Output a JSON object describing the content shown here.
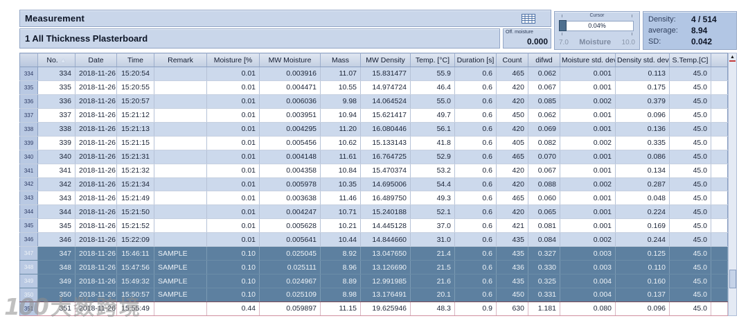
{
  "window": {
    "title": "Measurement",
    "subtitle": "1 All Thickness Plasterboard"
  },
  "header": {
    "off_moisture": {
      "label": "Off. moisture",
      "value": "0.000"
    },
    "cursor": {
      "label": "Cursor",
      "value": "0.04%",
      "scale_min": "7.0",
      "scale_name": "Moisture",
      "scale_max": "10.0"
    },
    "stats": {
      "density_label": "Density:",
      "density_value": "4 / 514",
      "average_label": "average:",
      "average_value": "8.94",
      "sd_label": "SD:",
      "sd_value": "0.042"
    }
  },
  "table": {
    "columns": [
      "No.",
      "Date",
      "Time",
      "Remark",
      "Moisture [%",
      "MW Moisture",
      "Mass",
      "MW Density",
      "Temp. [°C]",
      "Duration [s]",
      "Count",
      "difwd",
      "Moisture std. dev",
      "Density std. dev",
      "S.Temp.[C]"
    ],
    "rows": [
      {
        "cells": [
          "334",
          "334",
          "2018-11-26",
          "15:20:54",
          "",
          "0.01",
          "0.003916",
          "11.07",
          "15.831477",
          "55.9",
          "0.6",
          "465",
          "0.062",
          "0.001",
          "0.113",
          "45.0"
        ],
        "selected": false
      },
      {
        "cells": [
          "335",
          "335",
          "2018-11-26",
          "15:20:55",
          "",
          "0.01",
          "0.004471",
          "10.55",
          "14.974724",
          "46.4",
          "0.6",
          "420",
          "0.067",
          "0.001",
          "0.175",
          "45.0"
        ],
        "selected": false
      },
      {
        "cells": [
          "336",
          "336",
          "2018-11-26",
          "15:20:57",
          "",
          "0.01",
          "0.006036",
          "9.98",
          "14.064524",
          "55.0",
          "0.6",
          "420",
          "0.085",
          "0.002",
          "0.379",
          "45.0"
        ],
        "selected": false
      },
      {
        "cells": [
          "337",
          "337",
          "2018-11-26",
          "15:21:12",
          "",
          "0.01",
          "0.003951",
          "10.94",
          "15.621417",
          "49.7",
          "0.6",
          "450",
          "0.062",
          "0.001",
          "0.096",
          "45.0"
        ],
        "selected": false
      },
      {
        "cells": [
          "338",
          "338",
          "2018-11-26",
          "15:21:13",
          "",
          "0.01",
          "0.004295",
          "11.20",
          "16.080446",
          "56.1",
          "0.6",
          "420",
          "0.069",
          "0.001",
          "0.136",
          "45.0"
        ],
        "selected": false
      },
      {
        "cells": [
          "339",
          "339",
          "2018-11-26",
          "15:21:15",
          "",
          "0.01",
          "0.005456",
          "10.62",
          "15.133143",
          "41.8",
          "0.6",
          "405",
          "0.082",
          "0.002",
          "0.335",
          "45.0"
        ],
        "selected": false
      },
      {
        "cells": [
          "340",
          "340",
          "2018-11-26",
          "15:21:31",
          "",
          "0.01",
          "0.004148",
          "11.61",
          "16.764725",
          "52.9",
          "0.6",
          "465",
          "0.070",
          "0.001",
          "0.086",
          "45.0"
        ],
        "selected": false
      },
      {
        "cells": [
          "341",
          "341",
          "2018-11-26",
          "15:21:32",
          "",
          "0.01",
          "0.004358",
          "10.84",
          "15.470374",
          "53.2",
          "0.6",
          "420",
          "0.067",
          "0.001",
          "0.134",
          "45.0"
        ],
        "selected": false
      },
      {
        "cells": [
          "342",
          "342",
          "2018-11-26",
          "15:21:34",
          "",
          "0.01",
          "0.005978",
          "10.35",
          "14.695006",
          "54.4",
          "0.6",
          "420",
          "0.088",
          "0.002",
          "0.287",
          "45.0"
        ],
        "selected": false
      },
      {
        "cells": [
          "343",
          "343",
          "2018-11-26",
          "15:21:49",
          "",
          "0.01",
          "0.003638",
          "11.46",
          "16.489750",
          "49.3",
          "0.6",
          "465",
          "0.060",
          "0.001",
          "0.048",
          "45.0"
        ],
        "selected": false
      },
      {
        "cells": [
          "344",
          "344",
          "2018-11-26",
          "15:21:50",
          "",
          "0.01",
          "0.004247",
          "10.71",
          "15.240188",
          "52.1",
          "0.6",
          "420",
          "0.065",
          "0.001",
          "0.224",
          "45.0"
        ],
        "selected": false
      },
      {
        "cells": [
          "345",
          "345",
          "2018-11-26",
          "15:21:52",
          "",
          "0.01",
          "0.005628",
          "10.21",
          "14.445128",
          "37.0",
          "0.6",
          "421",
          "0.081",
          "0.001",
          "0.169",
          "45.0"
        ],
        "selected": false
      },
      {
        "cells": [
          "346",
          "346",
          "2018-11-26",
          "15:22:09",
          "",
          "0.01",
          "0.005641",
          "10.44",
          "14.844660",
          "31.0",
          "0.6",
          "435",
          "0.084",
          "0.002",
          "0.244",
          "45.0"
        ],
        "selected": false
      },
      {
        "cells": [
          "347",
          "347",
          "2018-11-26",
          "15:46:11",
          "SAMPLE",
          "0.10",
          "0.025045",
          "8.92",
          "13.047650",
          "21.4",
          "0.6",
          "435",
          "0.327",
          "0.003",
          "0.125",
          "45.0"
        ],
        "selected": true
      },
      {
        "cells": [
          "348",
          "348",
          "2018-11-26",
          "15:47:56",
          "SAMPLE",
          "0.10",
          "0.025111",
          "8.96",
          "13.126690",
          "21.5",
          "0.6",
          "436",
          "0.330",
          "0.003",
          "0.110",
          "45.0"
        ],
        "selected": true
      },
      {
        "cells": [
          "349",
          "349",
          "2018-11-26",
          "15:49:32",
          "SAMPLE",
          "0.10",
          "0.024967",
          "8.89",
          "12.991985",
          "21.6",
          "0.6",
          "435",
          "0.325",
          "0.004",
          "0.160",
          "45.0"
        ],
        "selected": true
      },
      {
        "cells": [
          "350",
          "350",
          "2018-11-26",
          "15:50:57",
          "SAMPLE",
          "0.10",
          "0.025109",
          "8.98",
          "13.176491",
          "20.1",
          "0.6",
          "450",
          "0.331",
          "0.004",
          "0.137",
          "45.0"
        ],
        "selected": true
      },
      {
        "cells": [
          "351",
          "351",
          "2018-11-26",
          "15:55:49",
          "",
          "0.44",
          "0.059897",
          "11.15",
          "19.625946",
          "48.3",
          "0.9",
          "630",
          "1.181",
          "0.080",
          "0.096",
          "45.0"
        ],
        "selected": false,
        "current": true
      }
    ]
  },
  "watermark": {
    "logo": "100",
    "text": "大数跨境"
  },
  "colors": {
    "panel_bg": "#c9d6ea",
    "stats_bg": "#b2c6e4",
    "row_alt_bg": "#ccd9ec",
    "selected_row_bg": "#5d80a0",
    "gutter_bg": "#b9c9e3",
    "scroll_arrow_red": "#c33b3b"
  }
}
